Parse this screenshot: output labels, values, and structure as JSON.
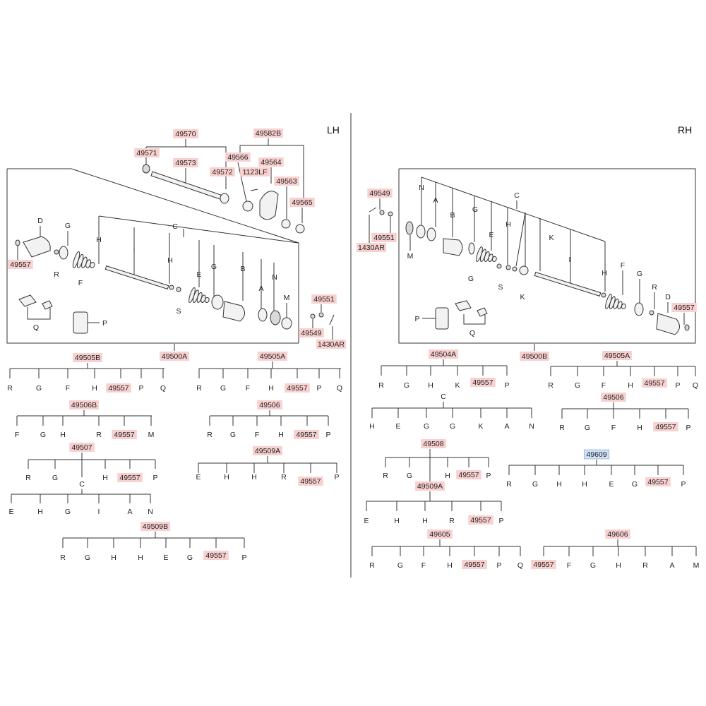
{
  "title": "",
  "panels": {
    "left": "LH",
    "right": "RH"
  },
  "colors": {
    "highlight": "#f8d0cf",
    "selected_highlight": "#cfe0f6",
    "line": "#333333"
  },
  "part_numbers": [
    "49570",
    "49582B",
    "49571",
    "49573",
    "49566",
    "49564",
    "49572",
    "1123LF",
    "49563",
    "49565",
    "49557",
    "49551",
    "49549",
    "1430AR",
    "49500A",
    "49505B",
    "49505A",
    "49506B",
    "49506",
    "49507",
    "49509A",
    "49509B",
    "49500B",
    "49504A",
    "49508",
    "49609",
    "49605",
    "49606"
  ],
  "letters": [
    "A",
    "B",
    "C",
    "D",
    "E",
    "F",
    "G",
    "H",
    "I",
    "K",
    "M",
    "N",
    "P",
    "Q",
    "R",
    "S"
  ],
  "selected_part": "49609"
}
